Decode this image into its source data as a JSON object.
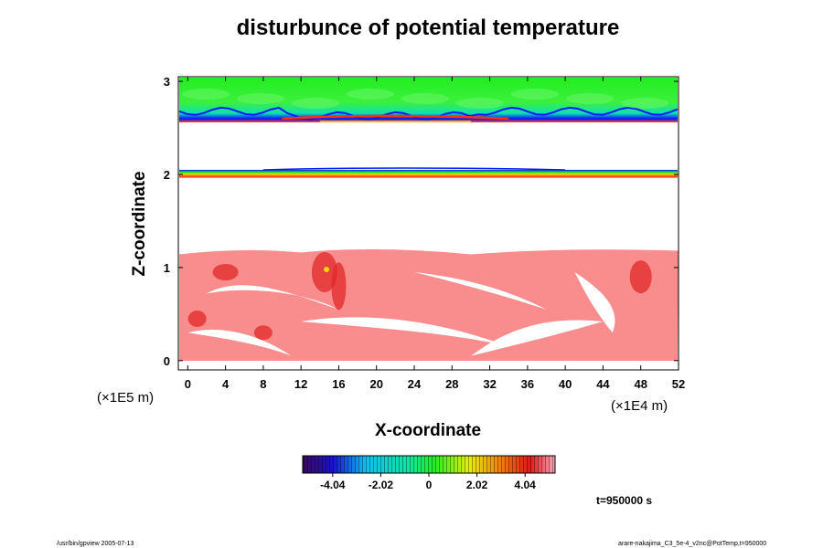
{
  "chart_data": {
    "type": "heatmap",
    "title": "disturbunce of potential temperature",
    "xlabel": "X-coordinate",
    "ylabel": "Z-coordinate",
    "x_scale_note": "(×1E4 m)",
    "y_scale_note": "(×1E5 m)",
    "xlim": [
      -1,
      52
    ],
    "ylim": [
      -0.1,
      3.05
    ],
    "x_ticks": [
      0,
      4,
      8,
      12,
      16,
      20,
      24,
      28,
      32,
      36,
      40,
      44,
      48,
      52
    ],
    "y_ticks": [
      0,
      1,
      2,
      3
    ],
    "colorbar": {
      "ticks": [
        "-4.04",
        "-2.02",
        "0",
        "2.02",
        "4.04"
      ],
      "range": [
        -5.3,
        5.3
      ],
      "colormap": "rainbow (violet-blue-cyan-green-yellow-red-pink)"
    },
    "regions": [
      {
        "feature": "upper layer",
        "z_range": [
          2.6,
          3.05
        ],
        "dominant_value": 0.8,
        "color": "#22ee22"
      },
      {
        "feature": "thin band",
        "z_range": [
          1.98,
          2.03
        ],
        "dominant_value": 0.0,
        "color": "#ffd400"
      },
      {
        "feature": "lower convective layer",
        "z_range": [
          0,
          1.2
        ],
        "dominant_value": 4.5,
        "color": "#f98c8c"
      }
    ],
    "time_label": "t=950000 s",
    "colors": {
      "strong_positive": "#e02828",
      "positive": "#f98c8c",
      "neutral": "#22ee22",
      "negative": "#0a1aff"
    }
  },
  "footer": {
    "left": "/usr/bin/gpview 2005-07-13",
    "right": "arare-nakajima_C3_5e-4_v2nc@PotTemp,t=950000"
  }
}
